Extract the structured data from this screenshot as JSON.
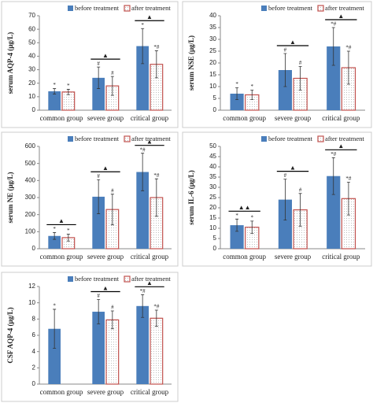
{
  "chart_data": [
    {
      "type": "bar",
      "y_label": "serum AQP-4 (μg/L)",
      "categories": [
        "common group",
        "severe group",
        "critical group"
      ],
      "ylim": [
        0,
        70
      ],
      "yticks": [
        0,
        10,
        20,
        30,
        40,
        50,
        60,
        70
      ],
      "series": [
        {
          "name": "before treatment",
          "color": "#4a7ebb",
          "values": [
            14,
            24,
            47.5
          ],
          "errors": [
            2,
            8,
            13
          ],
          "symbols": [
            "*",
            "#",
            "*"
          ]
        },
        {
          "name": "after treatment",
          "color": "#c0504d",
          "values": [
            13.5,
            18,
            34
          ],
          "errors": [
            2,
            7,
            10
          ],
          "symbols": [
            "*",
            "#",
            "*#"
          ]
        }
      ],
      "comparison_labels": [
        null,
        "▲",
        "▲"
      ]
    },
    {
      "type": "bar",
      "y_label": "serum NSE (μg/L)",
      "categories": [
        "common group",
        "severe group",
        "critical group"
      ],
      "ylim": [
        0,
        40
      ],
      "yticks": [
        0,
        5,
        10,
        15,
        20,
        25,
        30,
        35,
        40
      ],
      "series": [
        {
          "name": "before treatment",
          "color": "#4a7ebb",
          "values": [
            7,
            17,
            27
          ],
          "errors": [
            2.5,
            7,
            8
          ],
          "symbols": [
            "*",
            "#",
            "*#"
          ]
        },
        {
          "name": "after treatment",
          "color": "#c0504d",
          "values": [
            6.5,
            13.5,
            18
          ],
          "errors": [
            2,
            5,
            7
          ],
          "symbols": [
            "*",
            "#",
            "*#"
          ]
        }
      ],
      "comparison_labels": [
        null,
        "▲",
        "▲"
      ]
    },
    {
      "type": "bar",
      "y_label": "serum NE (μg/L)",
      "categories": [
        "common group",
        "severe group",
        "critical group"
      ],
      "ylim": [
        0,
        600
      ],
      "yticks": [
        0,
        100,
        200,
        300,
        400,
        500,
        600
      ],
      "series": [
        {
          "name": "before treatment",
          "color": "#4a7ebb",
          "values": [
            75,
            305,
            450
          ],
          "errors": [
            20,
            100,
            110
          ],
          "symbols": [
            "*",
            "#",
            "*#"
          ]
        },
        {
          "name": "after treatment",
          "color": "#c0504d",
          "values": [
            65,
            230,
            300
          ],
          "errors": [
            20,
            90,
            110
          ],
          "symbols": [
            "*",
            "#",
            "*#"
          ]
        }
      ],
      "comparison_labels": [
        "▲",
        "▲",
        "▲"
      ]
    },
    {
      "type": "bar",
      "y_label": "serum IL-6 (μg/L)",
      "categories": [
        "common group",
        "severe group",
        "critical group"
      ],
      "ylim": [
        0,
        50
      ],
      "yticks": [
        0,
        5,
        10,
        15,
        20,
        25,
        30,
        35,
        40,
        45,
        50
      ],
      "series": [
        {
          "name": "before treatment",
          "color": "#4a7ebb",
          "values": [
            11.5,
            24,
            35.5
          ],
          "errors": [
            3,
            10,
            9
          ],
          "symbols": [
            "*",
            "#",
            "*#"
          ]
        },
        {
          "name": "after treatment",
          "color": "#c0504d",
          "values": [
            10.5,
            19,
            24.5
          ],
          "errors": [
            3,
            8,
            8
          ],
          "symbols": [
            "*",
            "#",
            "*#"
          ]
        }
      ],
      "comparison_labels": [
        "▲▲",
        "▲",
        "▲"
      ]
    },
    {
      "type": "bar",
      "y_label": "CSF AQP-4 (μg/L)",
      "categories": [
        "common group",
        "severe group",
        "critical group"
      ],
      "ylim": [
        0,
        12
      ],
      "yticks": [
        0,
        2,
        4,
        6,
        8,
        10,
        12
      ],
      "series": [
        {
          "name": "before treatment",
          "color": "#4a7ebb",
          "values": [
            6.8,
            8.9,
            9.6
          ],
          "errors": [
            2.4,
            1.5,
            1.4
          ],
          "symbols": [
            "*",
            "#",
            "*#"
          ]
        },
        {
          "name": "after treatment",
          "color": "#c0504d",
          "values": [
            null,
            7.9,
            8.1
          ],
          "errors": [
            null,
            1.1,
            1.0
          ],
          "symbols": [
            null,
            "#",
            "*#"
          ]
        }
      ],
      "comparison_labels": [
        null,
        "▲",
        "▲"
      ]
    }
  ]
}
